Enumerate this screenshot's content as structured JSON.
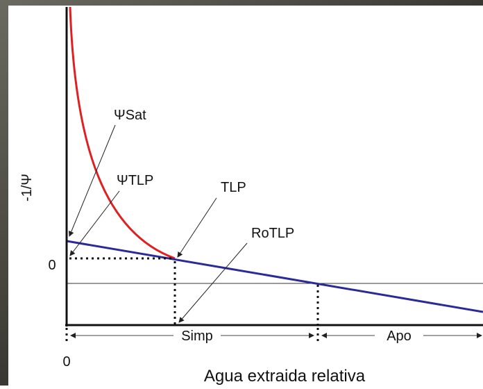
{
  "labels": {
    "psi_sat": "ΨSat",
    "psi_tlp": "ΨTLP",
    "tlp": "TLP",
    "rotlp": "RoTLP",
    "simp": "Simp",
    "apo": "Apo"
  },
  "axes": {
    "y_label": "-1/Ψ",
    "x_label": "Agua extraida relativa",
    "y_zero": "0",
    "x_zero": "0"
  }
}
